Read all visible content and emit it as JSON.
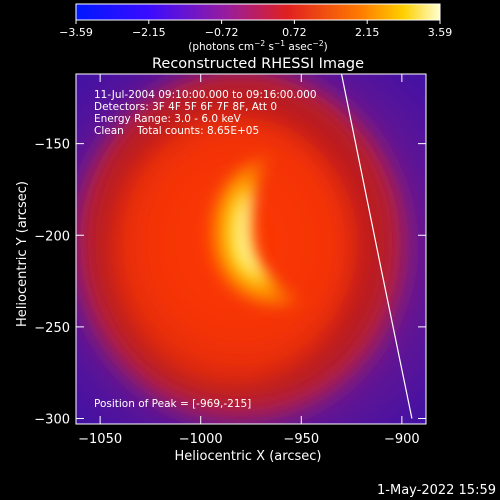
{
  "colorbar": {
    "tick_labels": [
      "−3.59",
      "−2.15",
      "−0.72",
      "0.72",
      "2.15",
      "3.59"
    ],
    "units_prefix": "(photons cm",
    "units_exp1": "−2",
    "units_mid1": " s",
    "units_exp2": "−1",
    "units_mid2": " asec",
    "units_exp3": "−2",
    "units_suffix": ")"
  },
  "title": "Reconstructed RHESSI Image",
  "annotations": {
    "time_range": "11-Jul-2004 09:10:00.000 to 09:16:00.000",
    "detectors": "Detectors: 3F 4F 5F 6F 7F 8F, Att 0",
    "energy_range": "Energy Range: 3.0 - 6.0 keV",
    "clean_counts": "Clean    Total counts: 8.65E+05",
    "peak_position": "Position of Peak = [-969,-215]"
  },
  "axes": {
    "xlabel": "Heliocentric X (arcsec)",
    "ylabel": "Heliocentric Y (arcsec)",
    "x_range": [
      -1062,
      -888
    ],
    "y_range": [
      -303,
      -112
    ],
    "x_ticks": [
      -1050,
      -1000,
      -950,
      -900
    ],
    "y_ticks": [
      -150,
      -200,
      -250,
      -300
    ],
    "x_tick_labels": [
      "−1050",
      "−1000",
      "−950",
      "−900"
    ],
    "y_tick_labels": [
      "−150",
      "−200",
      "−250",
      "−300"
    ]
  },
  "limb_line": {
    "points": [
      [
        -930,
        -112
      ],
      [
        -910,
        -220
      ],
      [
        -895,
        -300
      ]
    ]
  },
  "footer_date": "1-May-2022 15:59"
}
